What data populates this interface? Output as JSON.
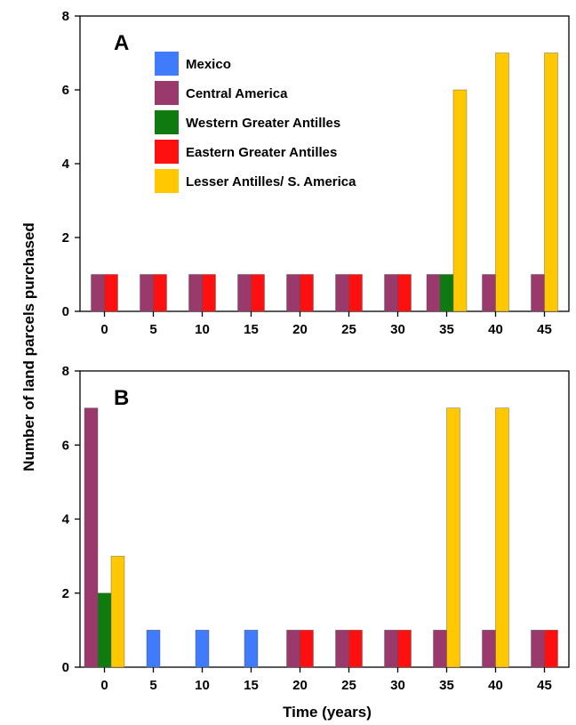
{
  "ylabel": "Number of land parcels purchased",
  "xlabel": "Time (years)",
  "colors": {
    "mexico": "#3f7bfa",
    "central_america": "#9a3a6c",
    "western_greater_antilles": "#0f7a0f",
    "eastern_greater_antilles": "#ff1010",
    "lesser_antilles": "#ffc800"
  },
  "chart_data": [
    {
      "type": "bar",
      "panel_label": "A",
      "categories": [
        "0",
        "5",
        "10",
        "15",
        "20",
        "25",
        "30",
        "35",
        "40",
        "45"
      ],
      "ylim": [
        0,
        8
      ],
      "yticks": [
        "0",
        "2",
        "4",
        "6",
        "8"
      ],
      "legend": {
        "placement": "top-center",
        "entries": [
          {
            "name": "Mexico",
            "color": "#3f7bfa"
          },
          {
            "name": "Central America",
            "color": "#9a3a6c"
          },
          {
            "name": "Western Greater Antilles",
            "color": "#0f7a0f"
          },
          {
            "name": "Eastern Greater Antilles",
            "color": "#ff1010"
          },
          {
            "name": "Lesser Antilles/ S. America",
            "color": "#ffc800"
          }
        ]
      },
      "series": [
        {
          "name": "Mexico",
          "color": "#3f7bfa",
          "values": [
            0,
            0,
            0,
            0,
            0,
            0,
            0,
            0,
            0,
            0
          ]
        },
        {
          "name": "Central America",
          "color": "#9a3a6c",
          "values": [
            1,
            1,
            1,
            1,
            1,
            1,
            1,
            1,
            1,
            1
          ]
        },
        {
          "name": "Western Greater Antilles",
          "color": "#0f7a0f",
          "values": [
            0,
            0,
            0,
            0,
            0,
            0,
            0,
            1,
            0,
            0
          ]
        },
        {
          "name": "Eastern Greater Antilles",
          "color": "#ff1010",
          "values": [
            1,
            1,
            1,
            1,
            1,
            1,
            1,
            0,
            0,
            0
          ]
        },
        {
          "name": "Lesser Antilles/ S. America",
          "color": "#ffc800",
          "values": [
            0,
            0,
            0,
            0,
            0,
            0,
            0,
            6,
            7,
            7
          ]
        }
      ]
    },
    {
      "type": "bar",
      "panel_label": "B",
      "categories": [
        "0",
        "5",
        "10",
        "15",
        "20",
        "25",
        "30",
        "35",
        "40",
        "45"
      ],
      "ylim": [
        0,
        8
      ],
      "yticks": [
        "0",
        "2",
        "4",
        "6",
        "8"
      ],
      "series": [
        {
          "name": "Mexico",
          "color": "#3f7bfa",
          "values": [
            0,
            1,
            1,
            1,
            0,
            0,
            0,
            0,
            0,
            0
          ]
        },
        {
          "name": "Central America",
          "color": "#9a3a6c",
          "values": [
            7,
            0,
            0,
            0,
            1,
            1,
            1,
            1,
            1,
            1
          ]
        },
        {
          "name": "Western Greater Antilles",
          "color": "#0f7a0f",
          "values": [
            2,
            0,
            0,
            0,
            0,
            0,
            0,
            0,
            0,
            0
          ]
        },
        {
          "name": "Eastern Greater Antilles",
          "color": "#ff1010",
          "values": [
            0,
            0,
            0,
            0,
            1,
            1,
            1,
            0,
            0,
            1
          ]
        },
        {
          "name": "Lesser Antilles/ S. America",
          "color": "#ffc800",
          "values": [
            3,
            0,
            0,
            0,
            0,
            0,
            0,
            7,
            7,
            0
          ]
        }
      ]
    }
  ]
}
